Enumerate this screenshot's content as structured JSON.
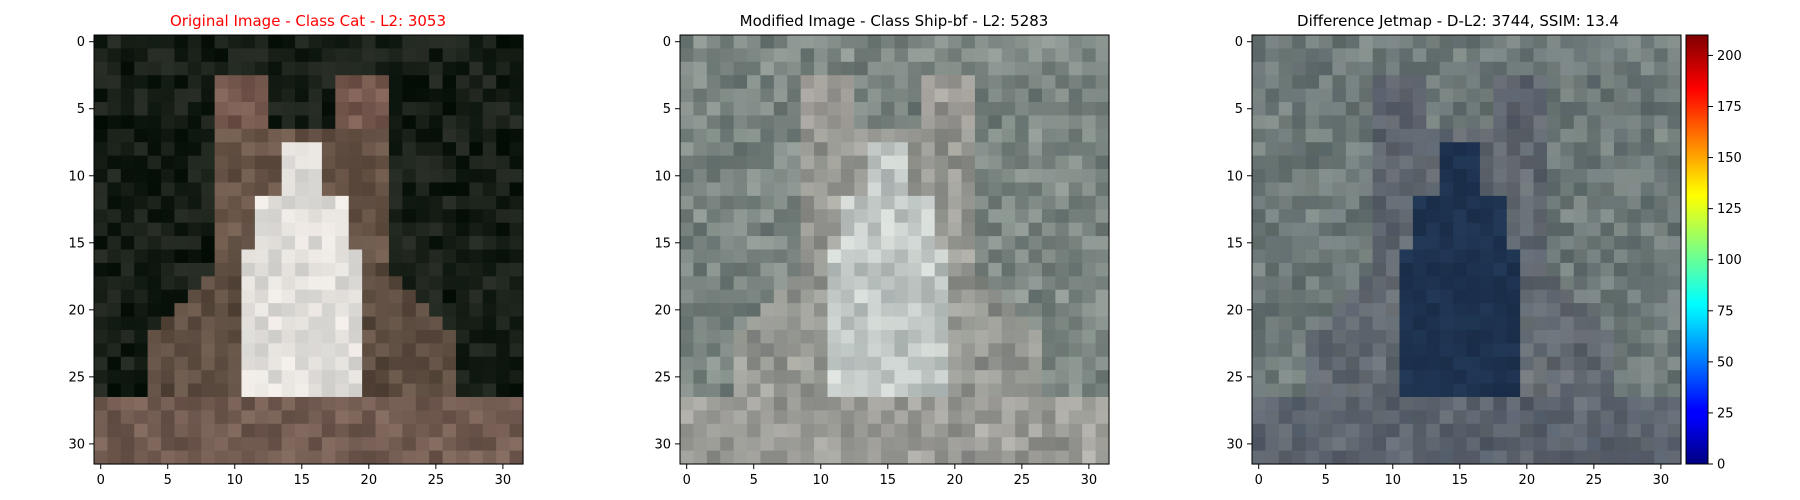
{
  "figure": {
    "panels": [
      {
        "title": "Original Image - Class Cat - L2: 3053",
        "title_color": "#ff0000"
      },
      {
        "title": "Modified Image - Class Ship-bf - L2: 5283",
        "title_color": "#000000"
      },
      {
        "title": "Difference Jetmap - D-L2: 3744, SSIM: 13.4",
        "title_color": "#000000"
      }
    ],
    "colorbar": {
      "colormap": "jet",
      "ticks": [
        "0",
        "25",
        "50",
        "75",
        "100",
        "125",
        "150",
        "175",
        "200"
      ]
    }
  },
  "chart_data": [
    {
      "type": "heatmap",
      "title": "Original Image - Class Cat - L2: 3053",
      "image_size": [
        32,
        32
      ],
      "xticks": [
        "0",
        "5",
        "10",
        "15",
        "20",
        "25",
        "30"
      ],
      "yticks": [
        "0",
        "5",
        "10",
        "15",
        "20",
        "25",
        "30"
      ],
      "xlim": [
        -0.5,
        31.5
      ],
      "ylim": [
        31.5,
        -0.5
      ]
    },
    {
      "type": "heatmap",
      "title": "Modified Image - Class Ship-bf - L2: 5283",
      "image_size": [
        32,
        32
      ],
      "xticks": [
        "0",
        "5",
        "10",
        "15",
        "20",
        "25",
        "30"
      ],
      "yticks": [
        "0",
        "5",
        "10",
        "15",
        "20",
        "25",
        "30"
      ],
      "xlim": [
        -0.5,
        31.5
      ],
      "ylim": [
        31.5,
        -0.5
      ]
    },
    {
      "type": "heatmap",
      "title": "Difference Jetmap - D-L2: 3744, SSIM: 13.4",
      "image_size": [
        32,
        32
      ],
      "xticks": [
        "0",
        "5",
        "10",
        "15",
        "20",
        "25",
        "30"
      ],
      "yticks": [
        "0",
        "5",
        "10",
        "15",
        "20",
        "25",
        "30"
      ],
      "xlim": [
        -0.5,
        31.5
      ],
      "ylim": [
        31.5,
        -0.5
      ],
      "colorbar_range": [
        0,
        210
      ]
    }
  ]
}
